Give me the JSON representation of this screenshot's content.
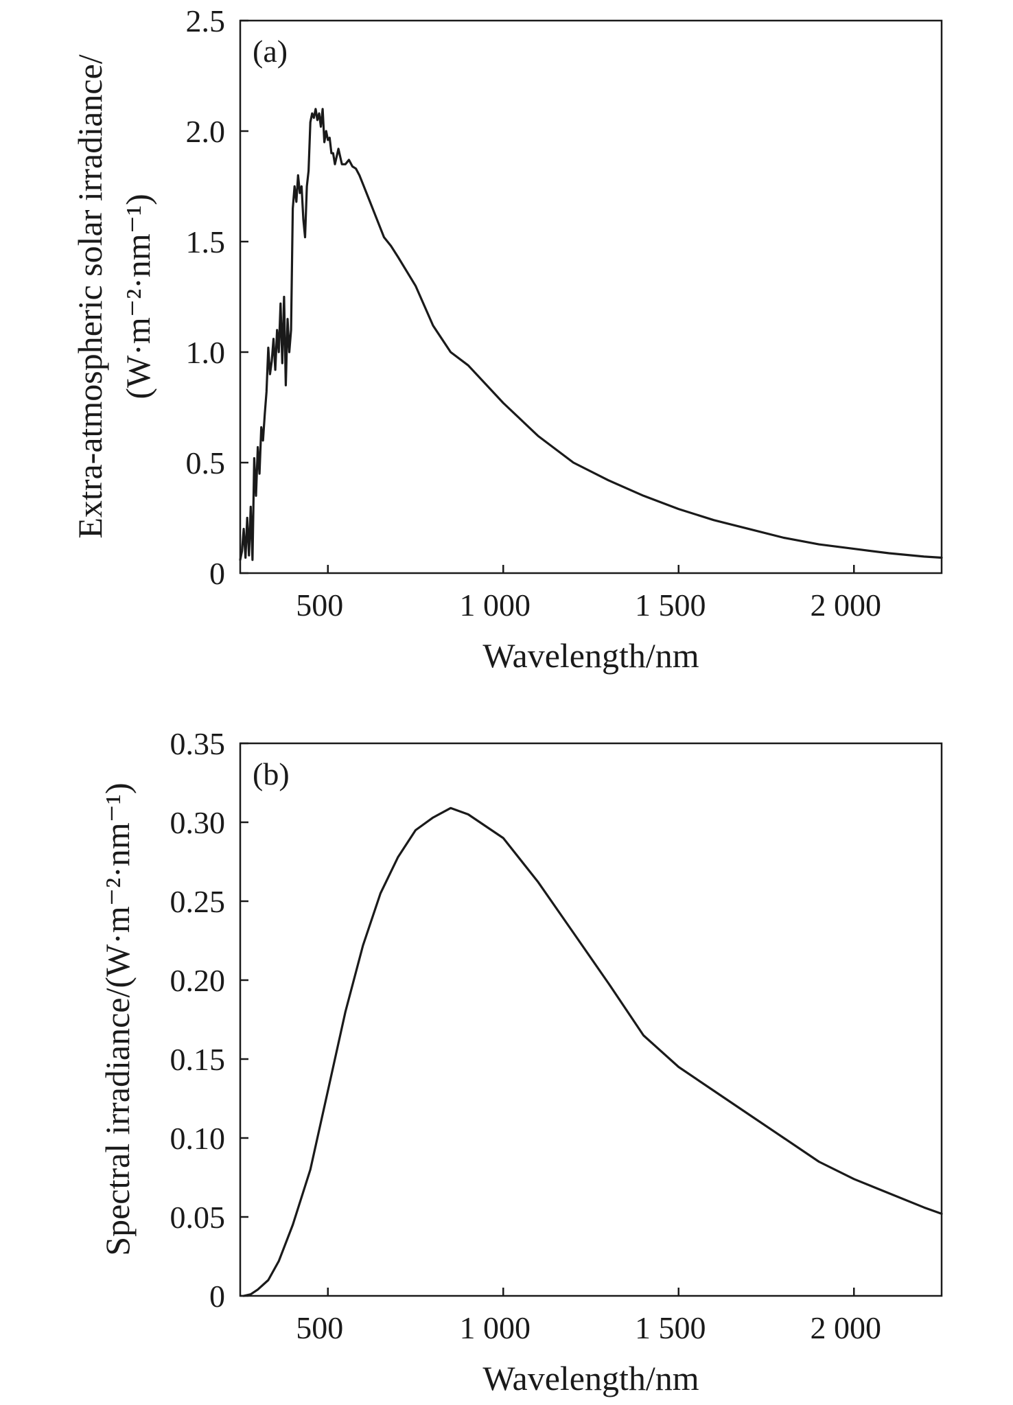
{
  "chart_data": [
    {
      "type": "line",
      "panel_label": "(a)",
      "xlabel": "Wavelength/nm",
      "ylabel": "Extra-atmospheric solar irradiance/",
      "ylabel_line2": "(W·m⁻²·nm⁻¹)",
      "xlim": [
        250,
        2250
      ],
      "ylim": [
        0,
        2.5
      ],
      "xticks": [
        500,
        1000,
        1500,
        2000
      ],
      "xtick_labels": [
        "500",
        "1 000",
        "1 500",
        "2 000"
      ],
      "yticks": [
        0,
        0.5,
        1.0,
        1.5,
        2.0,
        2.5
      ],
      "ytick_labels": [
        "0",
        "0.5",
        "1.0",
        "1.5",
        "2.0",
        "2.5"
      ],
      "grid": false,
      "series": [
        {
          "x": [
            250,
            255,
            260,
            265,
            270,
            275,
            280,
            285,
            290,
            295,
            300,
            305,
            310,
            315,
            320,
            325,
            330,
            335,
            340,
            345,
            350,
            355,
            360,
            365,
            370,
            375,
            380,
            385,
            390,
            395,
            400,
            405,
            410,
            415,
            420,
            425,
            430,
            435,
            440,
            445,
            450,
            455,
            460,
            465,
            470,
            475,
            480,
            485,
            490,
            495,
            500,
            505,
            510,
            515,
            520,
            530,
            540,
            550,
            560,
            570,
            580,
            590,
            600,
            620,
            640,
            660,
            680,
            700,
            750,
            800,
            850,
            900,
            1000,
            1100,
            1200,
            1300,
            1400,
            1500,
            1600,
            1700,
            1800,
            1900,
            2000,
            2100,
            2200,
            2250
          ],
          "y": [
            0.06,
            0.1,
            0.2,
            0.07,
            0.25,
            0.08,
            0.3,
            0.06,
            0.52,
            0.35,
            0.57,
            0.45,
            0.66,
            0.6,
            0.72,
            0.82,
            1.02,
            0.9,
            0.96,
            1.06,
            0.92,
            1.1,
            1.0,
            1.22,
            0.95,
            1.25,
            0.85,
            1.15,
            1.0,
            1.1,
            1.65,
            1.75,
            1.68,
            1.8,
            1.72,
            1.75,
            1.6,
            1.52,
            1.75,
            1.82,
            2.04,
            2.08,
            2.06,
            2.1,
            2.05,
            2.08,
            2.02,
            2.1,
            1.95,
            2.0,
            1.96,
            1.97,
            1.9,
            1.9,
            1.85,
            1.92,
            1.85,
            1.85,
            1.87,
            1.84,
            1.83,
            1.8,
            1.76,
            1.68,
            1.6,
            1.52,
            1.48,
            1.43,
            1.3,
            1.12,
            1.0,
            0.94,
            0.77,
            0.62,
            0.5,
            0.42,
            0.35,
            0.29,
            0.24,
            0.2,
            0.16,
            0.13,
            0.11,
            0.09,
            0.075,
            0.07
          ]
        }
      ]
    },
    {
      "type": "line",
      "panel_label": "(b)",
      "xlabel": "Wavelength/nm",
      "ylabel": "Spectral irradiance/(W·m⁻²·nm⁻¹)",
      "xlim": [
        250,
        2250
      ],
      "ylim": [
        0,
        0.35
      ],
      "xticks": [
        500,
        1000,
        1500,
        2000
      ],
      "xtick_labels": [
        "500",
        "1 000",
        "1 500",
        "2 000"
      ],
      "yticks": [
        0,
        0.05,
        0.1,
        0.15,
        0.2,
        0.25,
        0.3,
        0.35
      ],
      "ytick_labels": [
        "0",
        "0.05",
        "0.10",
        "0.15",
        "0.20",
        "0.25",
        "0.30",
        "0.35"
      ],
      "grid": false,
      "series": [
        {
          "x": [
            260,
            280,
            300,
            330,
            360,
            400,
            450,
            500,
            550,
            600,
            650,
            700,
            750,
            800,
            850,
            900,
            1000,
            1100,
            1200,
            1300,
            1400,
            1500,
            1600,
            1700,
            1800,
            1900,
            2000,
            2100,
            2200,
            2250
          ],
          "y": [
            0.0,
            0.001,
            0.004,
            0.01,
            0.022,
            0.045,
            0.08,
            0.13,
            0.18,
            0.222,
            0.255,
            0.278,
            0.295,
            0.303,
            0.309,
            0.305,
            0.29,
            0.262,
            0.23,
            0.198,
            0.165,
            0.145,
            0.13,
            0.115,
            0.1,
            0.085,
            0.074,
            0.065,
            0.056,
            0.052
          ]
        }
      ]
    }
  ]
}
